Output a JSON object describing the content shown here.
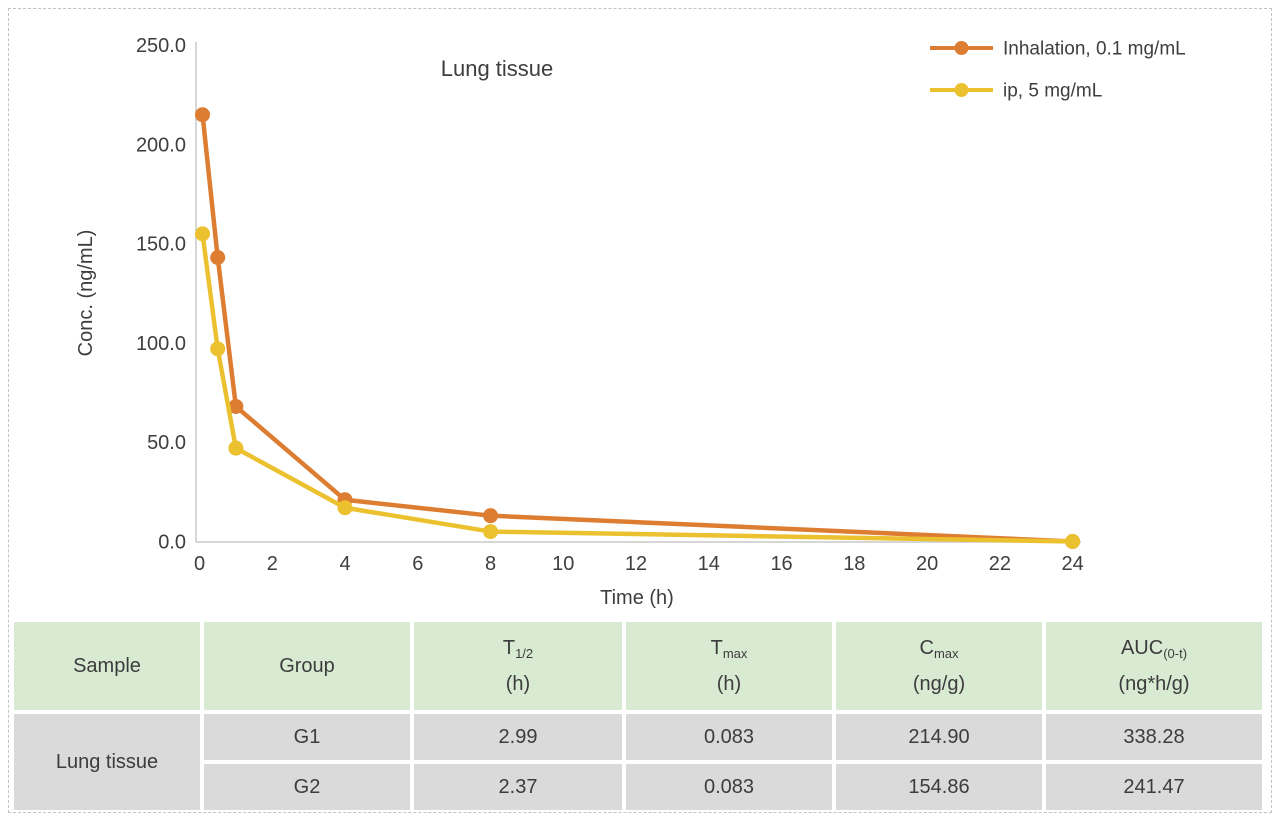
{
  "chart_data": {
    "type": "line",
    "title": "Lung tissue",
    "xlabel": "Time (h)",
    "ylabel": "Conc. (ng/mL)",
    "xlim": [
      0,
      24
    ],
    "ylim": [
      0,
      250
    ],
    "x_ticks": [
      0,
      2,
      4,
      6,
      8,
      10,
      12,
      14,
      16,
      18,
      20,
      22,
      24
    ],
    "y_ticks": [
      250,
      200,
      150,
      100,
      50,
      0
    ],
    "y_tick_labels": [
      "250.0",
      "200.0",
      "150.0",
      "100.0",
      "50.0",
      "0.0"
    ],
    "grid": false,
    "legend_position": "top-right",
    "x": [
      0.083,
      0.5,
      1,
      4,
      8,
      24
    ],
    "series": [
      {
        "name": "Inhalation, 0.1 mg/mL",
        "color": "#dd7d32",
        "values": [
          214.9,
          143,
          68,
          21,
          13,
          0
        ]
      },
      {
        "name": "ip, 5 mg/mL",
        "color": "#ecc12f",
        "values": [
          154.9,
          97,
          47,
          17,
          5,
          0
        ]
      }
    ],
    "axis_color": "#c9c9c9",
    "text_color": "#3e3e3e"
  },
  "table": {
    "header": [
      {
        "main": "Sample",
        "sub": "",
        "unit": ""
      },
      {
        "main": "Group",
        "sub": "",
        "unit": ""
      },
      {
        "main": "T",
        "sub": "1/2",
        "unit": "(h)"
      },
      {
        "main": "T",
        "sub": "max",
        "unit": "(h)"
      },
      {
        "main": "C",
        "sub": "max",
        "unit": "(ng/g)"
      },
      {
        "main": "AUC",
        "sub": "(0-t)",
        "unit": "(ng*h/g)"
      }
    ],
    "sample": "Lung tissue",
    "rows": [
      {
        "group": "G1",
        "t_half": "2.99",
        "t_max": "0.083",
        "c_max": "214.90",
        "auc": "338.28"
      },
      {
        "group": "G2",
        "t_half": "2.37",
        "t_max": "0.083",
        "c_max": "154.86",
        "auc": "241.47"
      }
    ],
    "colors": {
      "header_bg": "#d9ead3",
      "row_bg": "#dadada"
    }
  }
}
